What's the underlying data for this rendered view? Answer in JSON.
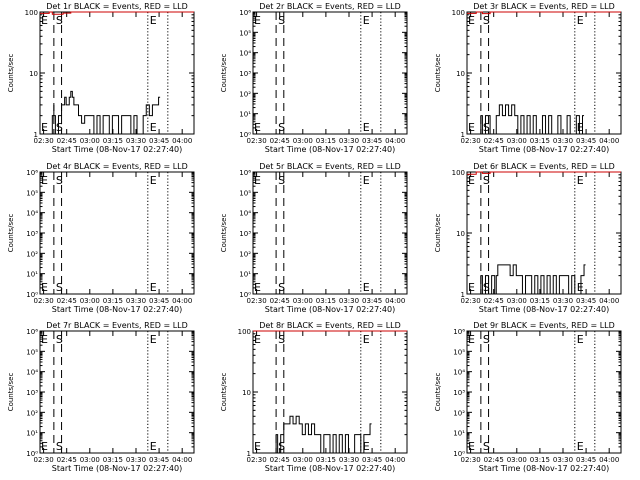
{
  "figure": {
    "x_tick_labels": [
      "02:30",
      "02:45",
      "03:00",
      "03:15",
      "03:30",
      "03:45",
      "04:00"
    ]
  },
  "chart_data": [
    {
      "type": "line",
      "title": "Det 1r BLACK = Events, RED = LLD",
      "xlabel": "Start Time (08-Nov-17 02:27:40)",
      "ylabel": "Counts/sec",
      "yscale": "log",
      "ylim": [
        1,
        100
      ],
      "y_tick_labels": [
        "1",
        "10",
        "100"
      ],
      "xlim_minutes": [
        0,
        100
      ],
      "markers": [
        {
          "label": "S",
          "dashed": [
            9,
            14
          ]
        },
        {
          "label": "E",
          "dotted": [
            70,
            83
          ]
        }
      ],
      "series": [
        {
          "name": "Events",
          "color": "#000000",
          "x": [
            8,
            8,
            9,
            9,
            10,
            12,
            14,
            16,
            17,
            19,
            20,
            21,
            22,
            25,
            27,
            29,
            31,
            33,
            35,
            37,
            39,
            41,
            43,
            45,
            47,
            49,
            51,
            53,
            55,
            57,
            59,
            61,
            63,
            65,
            67,
            69,
            71,
            73,
            75,
            77
          ],
          "y": [
            1,
            2,
            3,
            2,
            1,
            2,
            3,
            4,
            3,
            4,
            5,
            4,
            3,
            2,
            1.5,
            2,
            2,
            2,
            1,
            2,
            1,
            2,
            2,
            1,
            2,
            2,
            1,
            2,
            2,
            2,
            1,
            2,
            1,
            1,
            2,
            3,
            2,
            3,
            3,
            4
          ]
        },
        {
          "name": "LLD",
          "color": "#cc0000",
          "x": [
            0,
            6,
            8,
            15,
            20,
            25,
            30,
            35,
            40,
            45,
            50,
            55,
            60,
            65,
            70,
            75,
            80,
            85,
            90,
            95,
            100
          ],
          "y": [
            95,
            100,
            92,
            96,
            100,
            100,
            100,
            100,
            100,
            100,
            100,
            100,
            100,
            100,
            100,
            100,
            100,
            100,
            100,
            100,
            100
          ]
        }
      ]
    },
    {
      "type": "line",
      "title": "Det 2r BLACK = Events, RED = LLD",
      "xlabel": "Start Time (08-Nov-17 02:27:40)",
      "ylabel": "Counts/sec",
      "yscale": "log",
      "ylim": [
        1,
        1000000
      ],
      "y_tick_labels": [
        "10⁰",
        "10¹",
        "10²",
        "10³",
        "10⁴",
        "10⁵",
        "10⁶"
      ],
      "xlim_minutes": [
        0,
        100
      ],
      "markers": [
        {
          "label": "S",
          "dashed": [
            15,
            20
          ]
        },
        {
          "label": "E",
          "dotted": [
            70,
            83
          ]
        }
      ],
      "series": []
    },
    {
      "type": "line",
      "title": "Det 3r BLACK = Events, RED = LLD",
      "xlabel": "Start Time (08-Nov-17 02:27:40)",
      "ylabel": "Counts/sec",
      "yscale": "log",
      "ylim": [
        1,
        100
      ],
      "y_tick_labels": [
        "1",
        "10",
        "100"
      ],
      "xlim_minutes": [
        0,
        100
      ],
      "markers": [
        {
          "label": "S",
          "dashed": [
            9,
            14
          ]
        },
        {
          "label": "E",
          "dotted": [
            70,
            83
          ]
        }
      ],
      "series": [
        {
          "name": "Events",
          "color": "#000000",
          "x": [
            8,
            9,
            10,
            12,
            15,
            17,
            19,
            20,
            21,
            23,
            25,
            27,
            29,
            31,
            33,
            35,
            37,
            39,
            41,
            43,
            45,
            47,
            49,
            51,
            53,
            55,
            57,
            59,
            61,
            63,
            65,
            67,
            69,
            71,
            73,
            75
          ],
          "y": [
            1,
            2,
            1,
            2,
            1,
            1,
            2,
            2,
            3,
            2,
            3,
            2,
            3,
            2,
            1,
            2,
            1,
            2,
            1,
            2,
            1,
            1,
            2,
            1,
            2,
            1,
            1,
            2,
            1,
            1,
            2,
            1,
            1,
            2,
            1,
            2
          ]
        },
        {
          "name": "LLD",
          "color": "#cc0000",
          "x": [
            0,
            6,
            10,
            15,
            20,
            25,
            30,
            35,
            40,
            45,
            50,
            55,
            60,
            65,
            70,
            75,
            80,
            85,
            90,
            95,
            100
          ],
          "y": [
            95,
            100,
            94,
            100,
            100,
            100,
            100,
            100,
            100,
            100,
            100,
            100,
            100,
            100,
            100,
            100,
            100,
            100,
            100,
            100,
            100
          ]
        }
      ]
    },
    {
      "type": "line",
      "title": "Det 4r BLACK = Events, RED = LLD",
      "xlabel": "Start Time (08-Nov-17 02:27:40)",
      "ylabel": "Counts/sec",
      "yscale": "log",
      "ylim": [
        1,
        1000000
      ],
      "y_tick_labels": [
        "10⁰",
        "10¹",
        "10²",
        "10³",
        "10⁴",
        "10⁵",
        "10⁶"
      ],
      "xlim_minutes": [
        0,
        100
      ],
      "markers": [
        {
          "label": "S",
          "dashed": [
            9,
            14
          ]
        },
        {
          "label": "E",
          "dotted": [
            70,
            83
          ]
        }
      ],
      "series": []
    },
    {
      "type": "line",
      "title": "Det 5r BLACK = Events, RED = LLD",
      "xlabel": "Start Time (08-Nov-17 02:27:40)",
      "ylabel": "Counts/sec",
      "yscale": "log",
      "ylim": [
        1,
        1000000
      ],
      "y_tick_labels": [
        "10⁰",
        "10¹",
        "10²",
        "10³",
        "10⁴",
        "10⁵",
        "10⁶"
      ],
      "xlim_minutes": [
        0,
        100
      ],
      "markers": [
        {
          "label": "S",
          "dashed": [
            15,
            20
          ]
        },
        {
          "label": "E",
          "dotted": [
            70,
            83
          ]
        }
      ],
      "series": []
    },
    {
      "type": "line",
      "title": "Det 6r BLACK = Events, RED = LLD",
      "xlabel": "Start Time (08-Nov-17 02:27:40)",
      "ylabel": "Counts/sec",
      "yscale": "log",
      "ylim": [
        1,
        100
      ],
      "y_tick_labels": [
        "1",
        "10",
        "100"
      ],
      "xlim_minutes": [
        0,
        100
      ],
      "markers": [
        {
          "label": "S",
          "dashed": [
            9,
            14
          ]
        },
        {
          "label": "E",
          "dotted": [
            70,
            83
          ]
        }
      ],
      "series": [
        {
          "name": "Events",
          "color": "#000000",
          "x": [
            8,
            9,
            10,
            12,
            14,
            16,
            18,
            19,
            20,
            22,
            24,
            26,
            28,
            30,
            32,
            34,
            36,
            38,
            40,
            42,
            44,
            46,
            48,
            50,
            52,
            54,
            56,
            58,
            60,
            62,
            64,
            66,
            68,
            70,
            72,
            74,
            76
          ],
          "y": [
            1,
            2,
            1,
            2,
            1,
            2,
            1,
            2,
            3,
            3,
            3,
            3,
            2,
            3,
            2,
            2,
            1,
            2,
            2,
            1,
            2,
            1,
            2,
            1,
            2,
            1,
            2,
            1,
            2,
            2,
            2,
            1,
            2,
            1,
            1,
            2,
            3
          ]
        },
        {
          "name": "LLD",
          "color": "#cc0000",
          "x": [
            0,
            6,
            10,
            15,
            20,
            25,
            30,
            35,
            40,
            45,
            50,
            55,
            60,
            65,
            70,
            75,
            80,
            85,
            90,
            95,
            100
          ],
          "y": [
            92,
            100,
            95,
            100,
            100,
            100,
            100,
            100,
            100,
            100,
            100,
            100,
            100,
            100,
            100,
            100,
            100,
            100,
            100,
            100,
            100
          ]
        }
      ]
    },
    {
      "type": "line",
      "title": "Det 7r BLACK = Events, RED = LLD",
      "xlabel": "Start Time (08-Nov-17 02:27:40)",
      "ylabel": "Counts/sec",
      "yscale": "log",
      "ylim": [
        1,
        1000000
      ],
      "y_tick_labels": [
        "10⁰",
        "10¹",
        "10²",
        "10³",
        "10⁴",
        "10⁵",
        "10⁶"
      ],
      "xlim_minutes": [
        0,
        100
      ],
      "markers": [
        {
          "label": "S",
          "dashed": [
            9,
            14
          ]
        },
        {
          "label": "E",
          "dotted": [
            70,
            83
          ]
        }
      ],
      "series": []
    },
    {
      "type": "line",
      "title": "Det 8r BLACK = Events, RED = LLD",
      "xlabel": "Start Time (08-Nov-17 02:27:40)",
      "ylabel": "Counts/sec",
      "yscale": "log",
      "ylim": [
        1,
        100
      ],
      "y_tick_labels": [
        "1",
        "10",
        "100"
      ],
      "xlim_minutes": [
        0,
        100
      ],
      "markers": [
        {
          "label": "S",
          "dashed": [
            15,
            20
          ]
        },
        {
          "label": "E",
          "dotted": [
            70,
            83
          ]
        }
      ],
      "series": [
        {
          "name": "Events",
          "color": "#000000",
          "x": [
            14,
            15,
            16,
            18,
            20,
            22,
            24,
            26,
            28,
            30,
            32,
            34,
            36,
            38,
            40,
            42,
            44,
            46,
            48,
            50,
            52,
            54,
            56,
            58,
            60,
            62,
            64,
            66,
            68,
            70,
            72,
            74,
            76
          ],
          "y": [
            1,
            2,
            1,
            2,
            3,
            3,
            4,
            3,
            4,
            3,
            2,
            3,
            2,
            3,
            2,
            2,
            1,
            2,
            2,
            1,
            2,
            1,
            2,
            1,
            2,
            1,
            1,
            2,
            2,
            1,
            2,
            2,
            3
          ]
        },
        {
          "name": "LLD",
          "color": "#cc0000",
          "x": [
            0,
            100
          ],
          "y": [
            100,
            100
          ]
        }
      ]
    },
    {
      "type": "line",
      "title": "Det 9r BLACK = Events, RED = LLD",
      "xlabel": "Start Time (08-Nov-17 02:27:40)",
      "ylabel": "Counts/sec",
      "yscale": "log",
      "ylim": [
        1,
        1000000
      ],
      "y_tick_labels": [
        "10⁰",
        "10¹",
        "10²",
        "10³",
        "10⁴",
        "10⁵",
        "10⁶"
      ],
      "xlim_minutes": [
        0,
        100
      ],
      "markers": [
        {
          "label": "S",
          "dashed": [
            9,
            14
          ]
        },
        {
          "label": "E",
          "dotted": [
            70,
            83
          ]
        }
      ],
      "series": []
    }
  ]
}
